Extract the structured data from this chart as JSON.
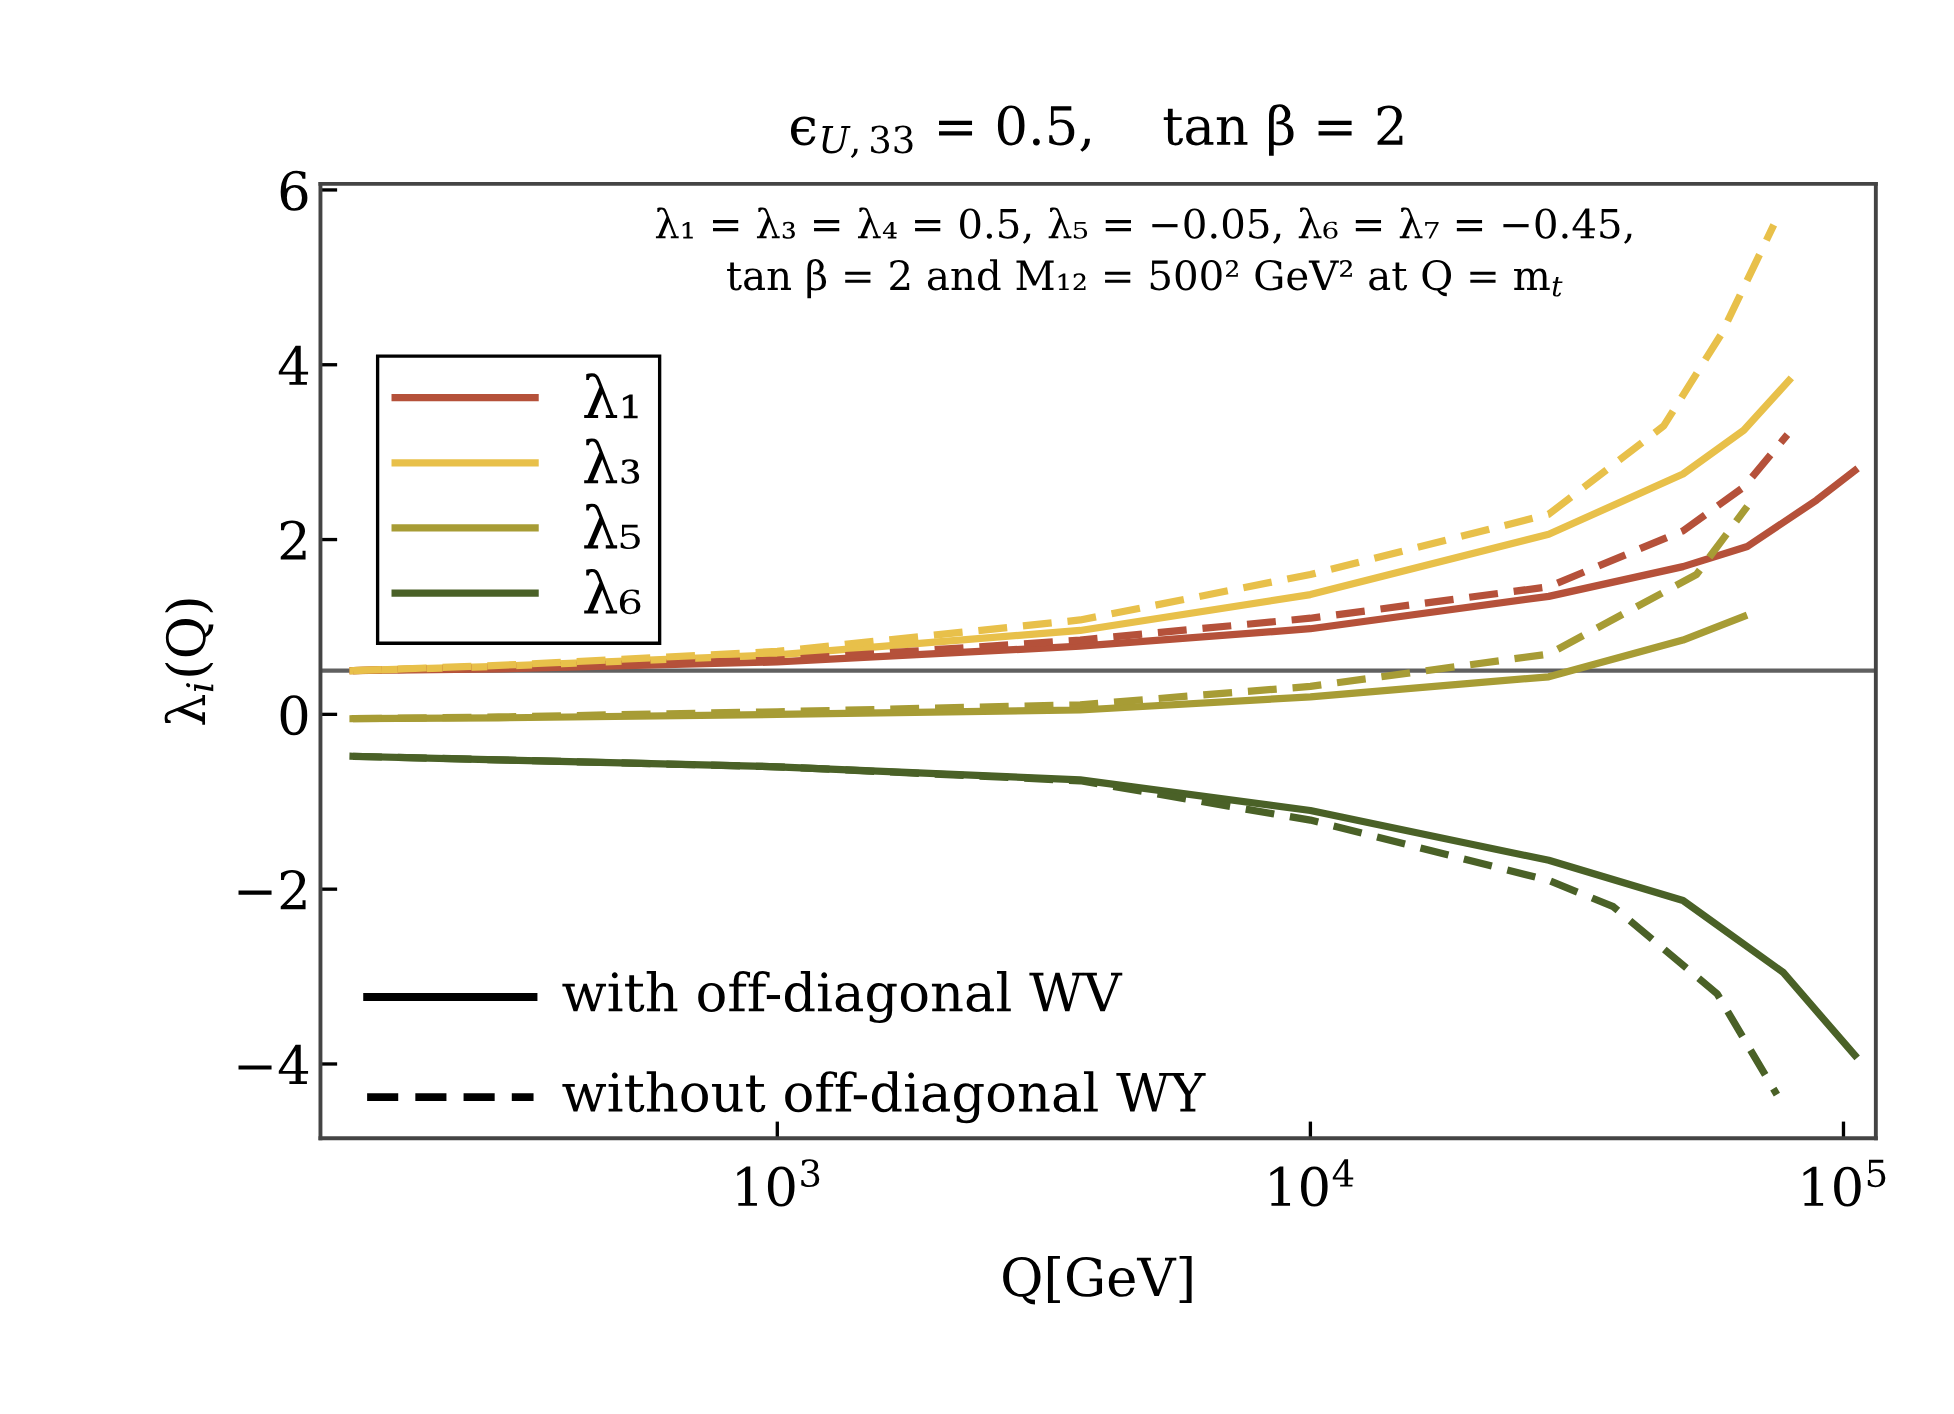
{
  "chart_data": {
    "type": "line",
    "title": "ϵ$_{U,33}$ = 0.5,    tan β = 2",
    "xlabel": "Q[GeV]",
    "ylabel": "λ$_{i}$(Q)",
    "log": "x",
    "xlim": [
      139,
      115000
    ],
    "ylim": [
      -4.85,
      6.07
    ],
    "xticks": [
      {
        "value": 1000,
        "label": "10$^{3}$"
      },
      {
        "value": 10000,
        "label": "10$^{4}$"
      },
      {
        "value": 100000,
        "label": "10$^{5}$"
      }
    ],
    "yticks": [
      {
        "value": -4,
        "label": "−4"
      },
      {
        "value": -2,
        "label": "−2"
      },
      0,
      2,
      4,
      6
    ],
    "grid": false,
    "legend": "top left",
    "marker": "none",
    "ref_lines": [
      {
        "axis": "y",
        "value": 0.5,
        "color": "#606060",
        "line_style": "solid"
      }
    ],
    "annotations": [
      "λ₁ = λ₃ = λ₄ = 0.5, λ₅ = −0.05, λ₆ = λ₇ = −0.45,\ntan β = 2 and M₁₂ = 500² GeV² at Q = m$_{t}$",
      "with off-diagonal WV",
      "without off-diagonal WY"
    ],
    "series": [
      {
        "name": "λ₁",
        "color": "#b5513a",
        "line_style": "solid",
        "x": [
          160,
          300,
          1000,
          3700,
          10000,
          28000,
          50000,
          66000,
          89000,
          105000
        ],
        "values": [
          0.5,
          0.52,
          0.6,
          0.78,
          0.98,
          1.35,
          1.69,
          1.92,
          2.45,
          2.79
        ]
      },
      {
        "name": "λ₃",
        "color": "#e8c04a",
        "line_style": "solid",
        "x": [
          160,
          300,
          1000,
          3700,
          10000,
          28000,
          50000,
          65000,
          79000
        ],
        "values": [
          0.5,
          0.55,
          0.68,
          0.96,
          1.37,
          2.06,
          2.75,
          3.25,
          3.82
        ]
      },
      {
        "name": "λ₅",
        "color": "#a79c35",
        "line_style": "solid",
        "x": [
          160,
          300,
          1000,
          3700,
          10000,
          28000,
          50000,
          65000
        ],
        "values": [
          -0.05,
          -0.04,
          0.0,
          0.05,
          0.2,
          0.43,
          0.85,
          1.12
        ]
      },
      {
        "name": "λ₆",
        "color": "#4a6127",
        "line_style": "solid",
        "x": [
          160,
          300,
          1000,
          3700,
          10000,
          28000,
          50000,
          77000,
          105000
        ],
        "values": [
          -0.48,
          -0.52,
          -0.6,
          -0.75,
          -1.1,
          -1.67,
          -2.13,
          -2.95,
          -3.9
        ]
      },
      {
        "color": "#b5513a",
        "line_style": "dashed",
        "x": [
          160,
          300,
          1000,
          3700,
          10000,
          28000,
          50000,
          65000,
          78500
        ],
        "values": [
          0.5,
          0.54,
          0.62,
          0.85,
          1.1,
          1.46,
          2.1,
          2.6,
          3.2
        ]
      },
      {
        "color": "#e8c04a",
        "line_style": "dashed",
        "x": [
          160,
          300,
          1000,
          3700,
          10000,
          28000,
          46000,
          59000,
          74000
        ],
        "values": [
          0.5,
          0.56,
          0.72,
          1.08,
          1.6,
          2.29,
          3.3,
          4.35,
          5.6
        ]
      },
      {
        "color": "#a79c35",
        "line_style": "dashed",
        "x": [
          160,
          300,
          1000,
          3700,
          10000,
          28000,
          53000,
          66000
        ],
        "values": [
          -0.05,
          -0.03,
          0.03,
          0.11,
          0.32,
          0.69,
          1.6,
          2.38
        ]
      },
      {
        "color": "#4a6127",
        "line_style": "dashed",
        "x": [
          160,
          300,
          1000,
          3700,
          10000,
          28000,
          37000,
          58000,
          75000
        ],
        "values": [
          -0.48,
          -0.52,
          -0.6,
          -0.76,
          -1.21,
          -1.9,
          -2.2,
          -3.2,
          -4.35
        ]
      }
    ]
  }
}
